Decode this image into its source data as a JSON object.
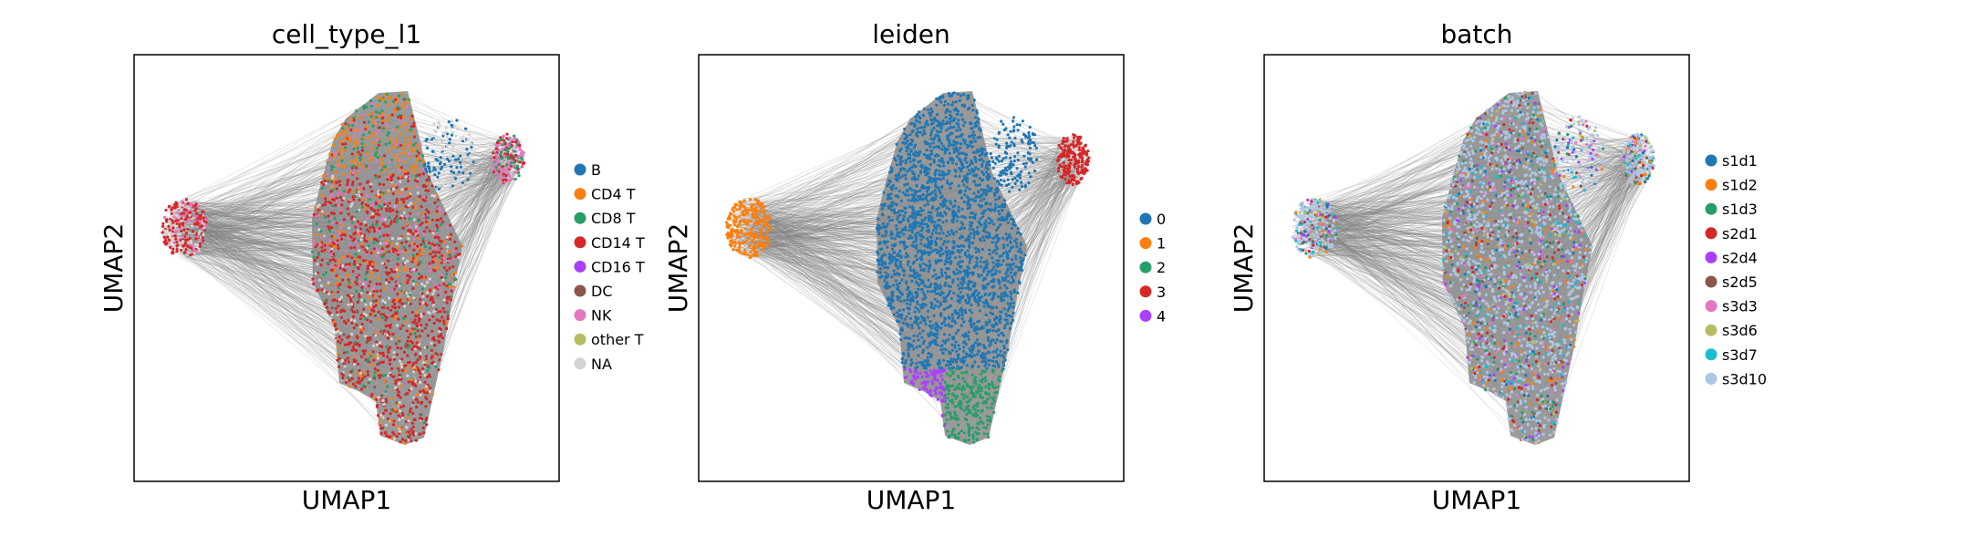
{
  "chart_data": [
    {
      "type": "scatter",
      "title": "cell_type_l1",
      "xlabel": "UMAP1",
      "ylabel": "UMAP2",
      "grid": false,
      "ticks": "none",
      "legend_position": "right",
      "background_edges_color": "#808080",
      "categories": [
        {
          "name": "B",
          "color": "#1f77b4"
        },
        {
          "name": "CD4 T",
          "color": "#ff7f0e"
        },
        {
          "name": "CD8 T",
          "color": "#279e68"
        },
        {
          "name": "CD14 T",
          "color": "#d62728"
        },
        {
          "name": "CD16 T",
          "color": "#aa40fc"
        },
        {
          "name": "DC",
          "color": "#8c564b"
        },
        {
          "name": "NK",
          "color": "#e377c2"
        },
        {
          "name": "other T",
          "color": "#b5bd61"
        },
        {
          "name": "NA",
          "color": "#d3d3d3"
        }
      ]
    },
    {
      "type": "scatter",
      "title": "leiden",
      "xlabel": "UMAP1",
      "ylabel": "UMAP2",
      "grid": false,
      "ticks": "none",
      "legend_position": "right",
      "background_edges_color": "#808080",
      "categories": [
        {
          "name": "0",
          "color": "#1f77b4"
        },
        {
          "name": "1",
          "color": "#ff7f0e"
        },
        {
          "name": "2",
          "color": "#279e68"
        },
        {
          "name": "3",
          "color": "#d62728"
        },
        {
          "name": "4",
          "color": "#aa40fc"
        }
      ]
    },
    {
      "type": "scatter",
      "title": "batch",
      "xlabel": "UMAP1",
      "ylabel": "UMAP2",
      "grid": false,
      "ticks": "none",
      "legend_position": "right",
      "background_edges_color": "#808080",
      "categories": [
        {
          "name": "s1d1",
          "color": "#1f77b4"
        },
        {
          "name": "s1d2",
          "color": "#ff7f0e"
        },
        {
          "name": "s1d3",
          "color": "#279e68"
        },
        {
          "name": "s2d1",
          "color": "#d62728"
        },
        {
          "name": "s2d4",
          "color": "#aa40fc"
        },
        {
          "name": "s2d5",
          "color": "#8c564b"
        },
        {
          "name": "s3d3",
          "color": "#e377c2"
        },
        {
          "name": "s3d6",
          "color": "#b5bd61"
        },
        {
          "name": "s3d7",
          "color": "#17becf"
        },
        {
          "name": "s3d10",
          "color": "#aec7e8"
        }
      ]
    }
  ]
}
